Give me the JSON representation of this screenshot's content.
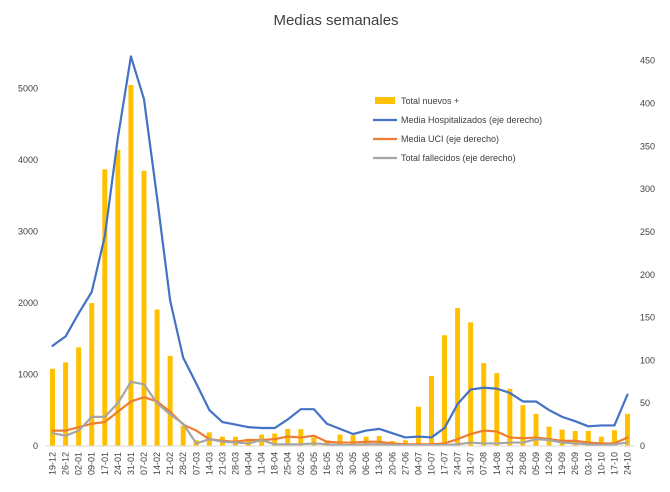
{
  "chart_data": {
    "type": "bar+line",
    "title": "Medias semanales",
    "categories": [
      "19-12",
      "26-12",
      "02-01",
      "09-01",
      "17-01",
      "24-01",
      "31-01",
      "07-02",
      "14-02",
      "21-02",
      "28-02",
      "07-03",
      "14-03",
      "21-03",
      "28-03",
      "04-04",
      "11-04",
      "18-04",
      "25-04",
      "02-05",
      "09-05",
      "16-05",
      "23-05",
      "30-05",
      "06-06",
      "13-06",
      "20-06",
      "27-06",
      "04-07",
      "10-07",
      "17-07",
      "24-07",
      "31-07",
      "07-08",
      "14-08",
      "21-08",
      "28-08",
      "05-09",
      "12-09",
      "19-09",
      "26-09",
      "03-10",
      "10-10",
      "17-10",
      "24-10"
    ],
    "y_left": {
      "min": 0,
      "max": 5750,
      "ticks": [
        0,
        1000,
        2000,
        3000,
        4000,
        5000
      ]
    },
    "y_right": {
      "min": 0,
      "max": 480,
      "ticks": [
        0,
        50,
        100,
        150,
        200,
        250,
        300,
        350,
        400,
        450
      ]
    },
    "series": [
      {
        "name": "Total nuevos +",
        "kind": "bar",
        "axis": "left",
        "color": "#FFC000",
        "values": [
          1080,
          1170,
          1380,
          2000,
          3870,
          4140,
          5050,
          3850,
          1910,
          1260,
          280,
          80,
          190,
          130,
          130,
          100,
          160,
          175,
          240,
          235,
          120,
          80,
          160,
          150,
          130,
          140,
          70,
          80,
          550,
          980,
          1550,
          1930,
          1730,
          1160,
          1020,
          800,
          570,
          450,
          270,
          230,
          210,
          210,
          130,
          220,
          450
        ]
      },
      {
        "name": "Media Hospitalizados (eje derecho)",
        "kind": "line",
        "axis": "right",
        "color": "#4472C4",
        "values": [
          117,
          128,
          155,
          180,
          245,
          360,
          455,
          405,
          290,
          170,
          103,
          73,
          42,
          28,
          25,
          22,
          21,
          21,
          31,
          43,
          43,
          26,
          20,
          14,
          18,
          20,
          15,
          10,
          11,
          10,
          21,
          49,
          66,
          68,
          67,
          62,
          52,
          52,
          42,
          34,
          29,
          23,
          24,
          24,
          60
        ]
      },
      {
        "name": "Media UCI (eje derecho)",
        "kind": "line",
        "axis": "right",
        "color": "#ED7D31",
        "values": [
          18,
          18,
          22,
          26,
          28,
          40,
          52,
          57,
          52,
          40,
          25,
          18,
          8,
          6,
          5,
          7,
          7,
          8,
          11,
          10,
          12,
          5,
          4,
          4,
          5,
          5,
          3,
          2,
          2,
          2,
          3,
          8,
          14,
          18,
          17,
          10,
          9,
          10,
          8,
          6,
          6,
          4,
          3,
          3,
          10
        ]
      },
      {
        "name": "Total fallecidos (eje derecho)",
        "kind": "line",
        "axis": "right",
        "color": "#A5A5A5",
        "values": [
          15,
          12,
          18,
          34,
          34,
          50,
          75,
          72,
          50,
          37,
          26,
          3,
          8,
          5,
          4,
          3,
          7,
          2,
          2,
          2,
          3,
          2,
          1,
          1,
          2,
          2,
          1,
          1,
          1,
          1,
          1,
          2,
          4,
          3,
          3,
          4,
          4,
          8,
          7,
          4,
          3,
          2,
          1,
          2,
          4
        ]
      }
    ],
    "legend": {
      "position": "top-right-inside"
    },
    "grid": false
  }
}
